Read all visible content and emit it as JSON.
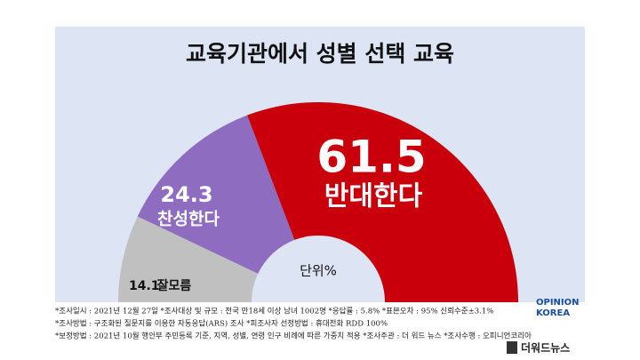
{
  "chart_data": {
    "type": "half-donut",
    "title": "교육기관에서 성별 선택 교육",
    "categories": [
      "잘모름",
      "찬성한다",
      "반대한다"
    ],
    "values": [
      14.1,
      24.3,
      61.5
    ],
    "colors": [
      "#c0c0c0",
      "#8e6cc0",
      "#c9000b"
    ],
    "unit_label": "단위%",
    "footnotes": [
      "*조사일시 : 2021년 12월 27일  *조사대상 및 규모 : 전국 만18세 이상 남녀 1002명 *응답률 : 5.8%  *표본오차 : 95% 신뢰수준±3.1%",
      "*조사방법 : 구조화된 질문지를 이용한 자동응답(ARS) 조사 *피조사자 선정방법 : 휴대전화 RDD 100%",
      "*보정방법 : 2021년 10월 행안부 주민등록 기준, 지역, 성별, 연령 인구 비례에 따른 가중치 적용  *조사주관 : 더 워드 뉴스  *조사수행 : 오피니언코리아"
    ],
    "logos": [
      "OPINION",
      "KOREA",
      "더워드뉴스"
    ]
  }
}
